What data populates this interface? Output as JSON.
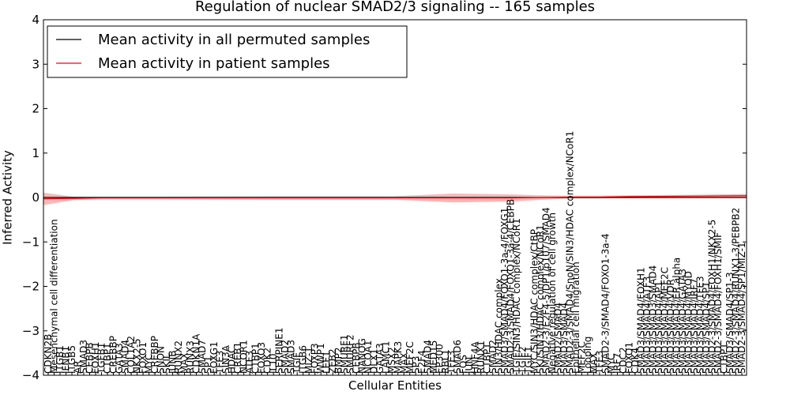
{
  "chart_data": {
    "type": "line",
    "title": "Regulation of nuclear SMAD2/3 signaling -- 165 samples",
    "xlabel": "Cellular Entities",
    "ylabel": "Inferred Activity",
    "ylim": [
      -4,
      4
    ],
    "yticks": [
      "−4",
      "−3",
      "−2",
      "−1",
      "0",
      "1",
      "2",
      "3",
      "4"
    ],
    "legend": {
      "position": "top-left",
      "entries": [
        {
          "label": "Mean activity in all permuted samples",
          "color": "#000000"
        },
        {
          "label": "Mean activity in patient samples",
          "color": "#ff0000"
        }
      ]
    },
    "categories": [
      "CDKN2B",
      "Mesenchymal cell differentiation",
      "ITGB1",
      "IFNB1",
      "ITGB5",
      "AR",
      "SMAD3",
      "CEBPB",
      "FOXH1",
      "TGFB1",
      "CTBP1",
      "CREBBP",
      "GATA3",
      "SMAD4",
      "COL1A2",
      "NKX2-5",
      "FOXO1",
      "MYC",
      "CREBBP",
      "SNON",
      "SKIL",
      "JUNB",
      "RUNX2",
      "MAX",
      "RUNX3",
      "CDKN1A",
      "SMAD7",
      "SP1",
      "FOXG1",
      "TFE3",
      "SIN3A",
      "HDAC",
      "CREB1",
      "NCOR1",
      "ATF3",
      "CTBP1",
      "FOXO3",
      "CDK2",
      "IL10",
      "SERPINE1",
      "SMAD2",
      "SMAD3",
      "TGIF",
      "ITGB6",
      "MIZ-1",
      "FOXP3",
      "WWP1",
      "LEF1",
      "ZEB2",
      "BMP2",
      "SMURF1",
      "SMURF2",
      "CEBPB",
      "NANOG",
      "NCOA1",
      "DLX1",
      "GATA3",
      "LAMC1",
      "MSX2",
      "MAPK3",
      "MAX",
      "MEF2C",
      "SP3",
      "E2F4",
      "SMAD4",
      "MED15",
      "EP300",
      "RBL1",
      "TFE3",
      "SMAD6",
      "FOS",
      "JUN",
      "HNF4A",
      "RUNX1",
      "CTBP1",
      "SMAD2",
      "SIN3/HDAC complex",
      "SMAD3/SMAD4/FOXO1-3a-4/FOXG1",
      "SMAD2-3/SMAD4/FOXO1-3a-4/CEBPB",
      "TGIF/SIN3/HDAC complex/NCoR1",
      "TGIF2",
      "TGIF1",
      "MYC/SIN3/HDAC complex/CtBP",
      "SKI/SIN3/HDAC complex/NCoR1",
      "SMAD2-3/E2F4-5/DP1/p107/SMAD4",
      "Negative regulation of cell growth",
      "SMAD2/SMAD4",
      "SMAD3/SMAD4",
      "SMAD2-3/SMAD4/SnoN/SIN3/HDAC complex/NCoR1",
      "Epithelial cell migration",
      "MEF2C",
      "Looping",
      "MAX",
      "TFE3",
      "SMAD2-3/SMAD4/FOXO1-3a-4",
      "MYC",
      "IRF7",
      "CDC2",
      "FOXO1",
      "CDK4",
      "SMAD3/SMAD4/FOXH1",
      "SMAD3/SMAD4/ATF3",
      "SMAD3/SMAD3/SMAD4",
      "SMAD3/SMAD4/AP1",
      "SMAD3/SMAD4/MEF2C",
      "SMAD3/SMAD4/VDR",
      "SMAD3/SMAD4/ER alpha",
      "SMAD3/SMAD4/GATA3",
      "SMAD3/SMAD4/MYOD",
      "SMAD3/SMAD4/IRF7",
      "SMAD3/SMAD4/TFE3",
      "SMAD3/SMAD4/SP1",
      "SMAD2-3/SMAD4/FOXH1/NKX2-5",
      "SMAD2-3/SMAD4/FOXH1/SMIF",
      "CTBP1",
      "SMAD3/SMAD4/SP1-3",
      "SMAD2-3/SMAD4/RUNX1-3/PEBPB2",
      "SMAD2-3/SMAD4/SP1/MIZ-1"
    ],
    "x_range": [
      0,
      120
    ],
    "series": [
      {
        "name": "Mean activity in all permuted samples",
        "color": "#000000",
        "x": [
          0,
          120
        ],
        "values": [
          0,
          0
        ]
      },
      {
        "name": "Mean activity in patient samples",
        "color": "#ff0000",
        "x": [
          0,
          5,
          10,
          20,
          40,
          60,
          70,
          80,
          85,
          90,
          95,
          100,
          110,
          120
        ],
        "values": [
          -0.03,
          -0.02,
          -0.01,
          -0.01,
          -0.01,
          -0.01,
          -0.01,
          -0.01,
          0,
          0.01,
          0.01,
          0.02,
          0.03,
          0.04
        ],
        "spread": [
          0.14,
          0.04,
          0.03,
          0.03,
          0.04,
          0.04,
          0.1,
          0.08,
          0.05,
          0.03,
          0.03,
          0.03,
          0.03,
          0.04
        ]
      }
    ]
  }
}
